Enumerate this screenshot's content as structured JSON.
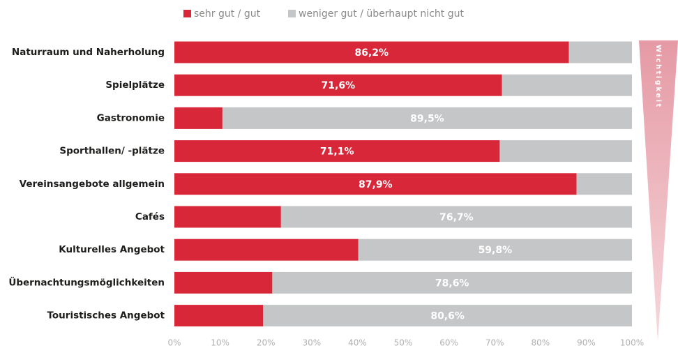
{
  "chart_data": {
    "type": "stacked-bar-horizontal",
    "categories": [
      "Naturraum und Naherholung",
      "Spielplätze",
      "Gastronomie",
      "Sporthallen/ -plätze",
      "Vereinsangebote allgemein",
      "Cafés",
      "Kulturelles Angebot",
      "Übernachtungsmöglichkeiten",
      "Touristisches Angebot"
    ],
    "series": [
      {
        "name": "sehr gut / gut",
        "color": "#d9273a",
        "values": [
          86.2,
          71.6,
          10.5,
          71.1,
          87.9,
          23.3,
          40.2,
          21.4,
          19.4
        ],
        "value_labels": [
          "86,2%",
          "71,6%",
          null,
          "71,1%",
          "87,9%",
          null,
          null,
          null,
          null
        ]
      },
      {
        "name": "weniger gut / überhaupt nicht gut",
        "color": "#c5c6c7",
        "values": [
          13.8,
          28.4,
          89.5,
          28.9,
          12.1,
          76.7,
          59.8,
          78.6,
          80.6
        ],
        "value_labels": [
          null,
          null,
          "89,5%",
          null,
          null,
          "76,7%",
          "59,8%",
          "78,6%",
          "80,6%"
        ]
      }
    ],
    "xlim": [
      0,
      100
    ],
    "xticks": [
      {
        "value": 0,
        "label": "0%"
      },
      {
        "value": 10,
        "label": "10%"
      },
      {
        "value": 20,
        "label": "20%"
      },
      {
        "value": 30,
        "label": "30%"
      },
      {
        "value": 40,
        "label": "40%"
      },
      {
        "value": 50,
        "label": "50%"
      },
      {
        "value": 60,
        "label": "60%"
      },
      {
        "value": 70,
        "label": "70%"
      },
      {
        "value": 80,
        "label": "80%"
      },
      {
        "value": 90,
        "label": "90%"
      },
      {
        "value": 100,
        "label": "100%"
      }
    ],
    "annotation": "Wichtigkeit"
  }
}
